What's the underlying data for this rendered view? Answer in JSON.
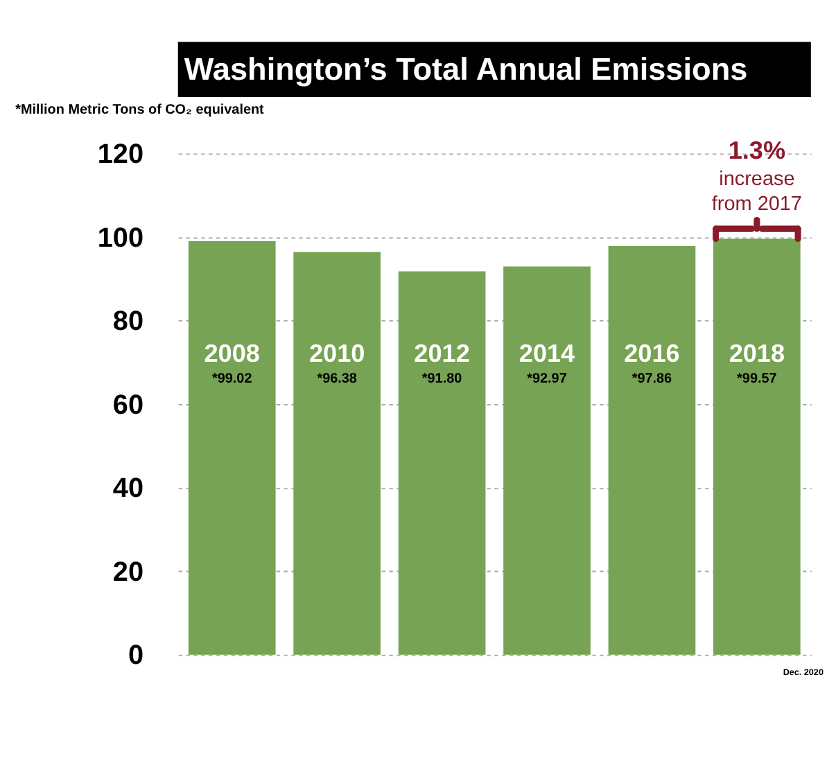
{
  "chart_data": {
    "type": "bar",
    "title": "Washington’s Total Annual Emissions",
    "subtitle": "*Million Metric Tons of CO₂ equivalent",
    "categories": [
      "2008",
      "2010",
      "2012",
      "2014",
      "2016",
      "2018"
    ],
    "values": [
      99.02,
      96.38,
      91.8,
      92.97,
      97.86,
      99.57
    ],
    "value_labels": [
      "*99.02",
      "*96.38",
      "*91.80",
      "*92.97",
      "*97.86",
      "*99.57"
    ],
    "color": "#77a354",
    "ylim": [
      0,
      120
    ],
    "yticks": [
      0,
      20,
      40,
      60,
      80,
      100,
      120
    ],
    "grid": "y",
    "tick_labels": "y",
    "annotations": [
      "1.3%\nincrease\nfrom 2017",
      "Dec. 2020"
    ]
  }
}
